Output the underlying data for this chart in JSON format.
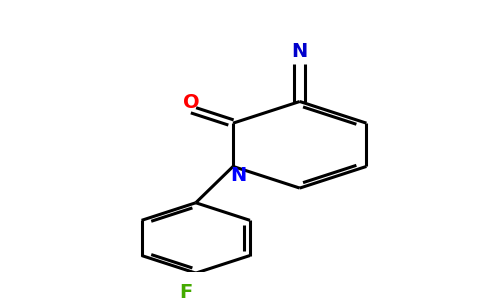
{
  "background_color": "#ffffff",
  "bond_color": "#000000",
  "bond_width": 2.2,
  "figsize": [
    4.84,
    3.0
  ],
  "dpi": 100,
  "colors": {
    "O": "#ff0000",
    "N_ring": "#0000ff",
    "N_nitrile": "#0000cc",
    "F": "#44aa00"
  }
}
